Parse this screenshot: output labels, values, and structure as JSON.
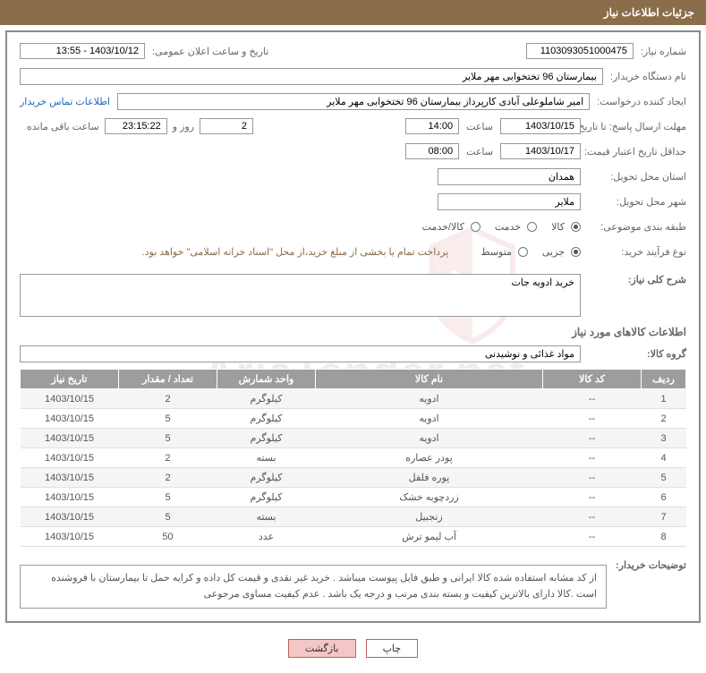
{
  "header": {
    "title": "جزئیات اطلاعات نیاز"
  },
  "form": {
    "need_no_label": "شماره نیاز:",
    "need_no": "1103093051000475",
    "announce_label": "تاریخ و ساعت اعلان عمومی:",
    "announce": "1403/10/12 - 13:55",
    "buyer_org_label": "نام دستگاه خریدار:",
    "buyer_org": "بیمارستان 96 تختخوابی مهر ملایر",
    "requester_label": "ایجاد کننده درخواست:",
    "requester": "امیر شاملوعلی آبادی کارپرداز بیمارستان 96 تختخوابی مهر ملایر",
    "contact_link": "اطلاعات تماس خریدار",
    "deadline_label": "مهلت ارسال پاسخ: تا تاریخ:",
    "deadline_date": "1403/10/15",
    "time_label": "ساعت",
    "deadline_time": "14:00",
    "days_remain": "2",
    "days_label": "روز و",
    "hours_remain": "23:15:22",
    "hours_label": "ساعت باقی مانده",
    "validity_label": "حداقل تاریخ اعتبار قیمت: تا تاریخ:",
    "validity_date": "1403/10/17",
    "validity_time": "08:00",
    "province_label": "استان محل تحویل:",
    "province": "همدان",
    "city_label": "شهر محل تحویل:",
    "city": "ملایر",
    "category_label": "طبقه بندی موضوعی:",
    "cat_goods": "کالا",
    "cat_service": "خدمت",
    "cat_both": "کالا/خدمت",
    "process_label": "نوع فرآیند خرید:",
    "proc_small": "جزیی",
    "proc_medium": "متوسط",
    "payment_note": "پرداخت تمام یا بخشی از مبلغ خرید،از محل \"اسناد خزانه اسلامی\" خواهد بود.",
    "summary_label": "شرح کلی نیاز:",
    "summary": "خرید ادویه جات",
    "goods_section": "اطلاعات کالاهای مورد نیاز",
    "group_label": "گروه کالا:",
    "group": "مواد غذائی و نوشیدنی",
    "buyer_desc_label": "توضیحات خریدار:",
    "buyer_desc": "از کد مشابه استفاده شده کالا ایرانی و طبق فایل پیوست میباشد . خرید غیر نقدی و قیمت کل داده و کرایه حمل تا بیمارستان با فروشنده است .کالا دارای بالاترین کیفیت و بسته بندی مرتب و درجه یک باشد . عدم کیفیت مساوی مرجوعی"
  },
  "table": {
    "headers": {
      "row": "ردیف",
      "code": "کد کالا",
      "name": "نام کالا",
      "unit": "واحد شمارش",
      "qty": "تعداد / مقدار",
      "date": "تاریخ نیاز"
    },
    "rows": [
      {
        "row": "1",
        "code": "--",
        "name": "ادویه",
        "unit": "کیلوگرم",
        "qty": "2",
        "date": "1403/10/15"
      },
      {
        "row": "2",
        "code": "--",
        "name": "ادویه",
        "unit": "کیلوگرم",
        "qty": "5",
        "date": "1403/10/15"
      },
      {
        "row": "3",
        "code": "--",
        "name": "ادویه",
        "unit": "کیلوگرم",
        "qty": "5",
        "date": "1403/10/15"
      },
      {
        "row": "4",
        "code": "--",
        "name": "پودر عصاره",
        "unit": "بسته",
        "qty": "2",
        "date": "1403/10/15"
      },
      {
        "row": "5",
        "code": "--",
        "name": "پوره فلفل",
        "unit": "کیلوگرم",
        "qty": "2",
        "date": "1403/10/15"
      },
      {
        "row": "6",
        "code": "--",
        "name": "زردچوبه خشک",
        "unit": "کیلوگرم",
        "qty": "5",
        "date": "1403/10/15"
      },
      {
        "row": "7",
        "code": "--",
        "name": "زنجبیل",
        "unit": "بسته",
        "qty": "5",
        "date": "1403/10/15"
      },
      {
        "row": "8",
        "code": "--",
        "name": "آب لیمو ترش",
        "unit": "عدد",
        "qty": "50",
        "date": "1403/10/15"
      }
    ],
    "col_widths": {
      "row": "50px",
      "code": "110px",
      "name": "auto",
      "unit": "110px",
      "qty": "110px",
      "date": "110px"
    }
  },
  "buttons": {
    "print": "چاپ",
    "back": "بازگشت"
  },
  "colors": {
    "header_bg": "#8a6d4a",
    "header_fg": "#ffffff",
    "border": "#8b8b8b",
    "th_bg": "#9d9d9d",
    "link": "#1a6bb8",
    "btn_back_bg": "#f4c6c6",
    "btn_border": "#c06060",
    "payment_note": "#8a6d4a",
    "label_color": "#666666"
  },
  "watermark": {
    "text": "AriaTender.net"
  }
}
